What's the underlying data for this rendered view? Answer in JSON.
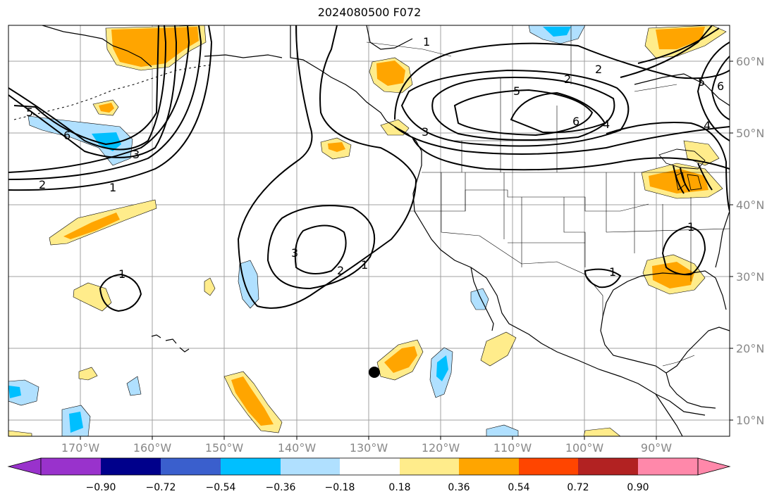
{
  "title": "2024080500 F072",
  "map": {
    "lon_labels": [
      "170°W",
      "160°W",
      "150°W",
      "140°W",
      "130°W",
      "120°W",
      "110°W",
      "100°W",
      "90°W"
    ],
    "lat_labels": [
      "60°N",
      "50°N",
      "40°N",
      "30°N",
      "20°N",
      "10°N"
    ],
    "contour_labels": [
      "1",
      "2",
      "3",
      "4",
      "5",
      "6"
    ],
    "contour_color": "#000000",
    "grid_color": "#a0a0a0",
    "coastline_color": "#000000",
    "marker": {
      "label": "marker-dot",
      "color": "#000000"
    }
  },
  "colorbar": {
    "ticks": [
      "−0.90",
      "−0.72",
      "−0.54",
      "−0.36",
      "−0.18",
      "0.18",
      "0.36",
      "0.54",
      "0.72",
      "0.90"
    ],
    "colors": [
      "#9932cc",
      "#00008b",
      "#3a5fcd",
      "#00bfff",
      "#b0e0ff",
      "#ffffff",
      "#ffec8b",
      "#ffa500",
      "#ff4500",
      "#b22222",
      "#ff88aa"
    ]
  },
  "fill_colors": {
    "neg_strong": "#00bfff",
    "neg_weak": "#b0e0ff",
    "pos_weak": "#ffec8b",
    "pos_mid": "#ffa500"
  }
}
